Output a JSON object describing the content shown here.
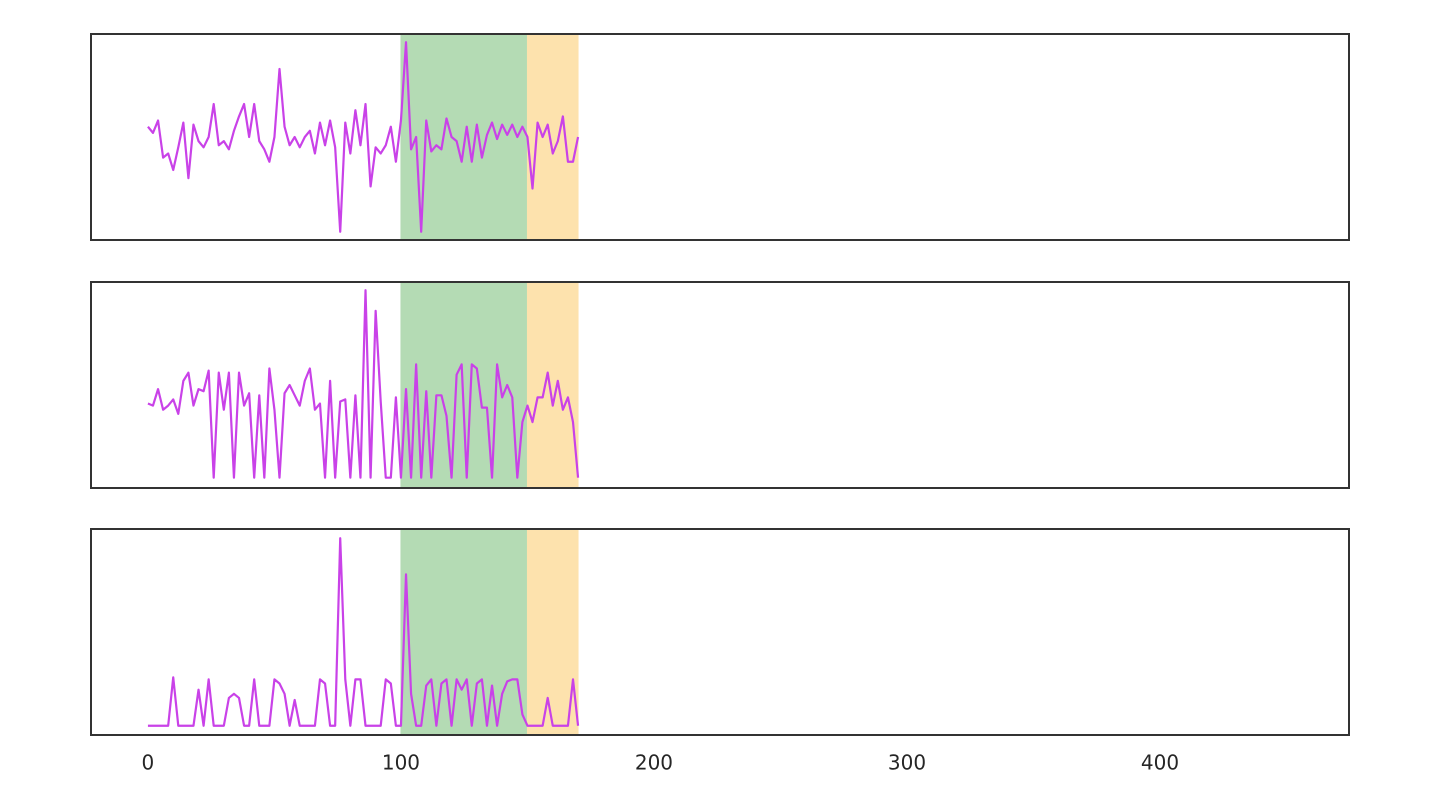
{
  "chart_data": {
    "type": "line",
    "x": [
      0,
      2,
      4,
      6,
      8,
      10,
      12,
      14,
      16,
      18,
      20,
      22,
      24,
      26,
      28,
      30,
      32,
      34,
      36,
      38,
      40,
      42,
      44,
      46,
      48,
      50,
      52,
      54,
      56,
      58,
      60,
      62,
      64,
      66,
      68,
      70,
      72,
      74,
      76,
      78,
      80,
      82,
      84,
      86,
      88,
      90,
      92,
      94,
      96,
      98,
      100,
      102,
      104,
      106,
      108,
      110,
      112,
      114,
      116,
      118,
      120,
      122,
      124,
      126,
      128,
      130,
      132,
      134,
      136,
      138,
      140,
      142,
      144,
      146,
      148,
      150,
      152,
      154,
      156,
      158,
      160,
      162,
      164,
      166,
      168,
      170
    ],
    "series": [
      {
        "color": "#c942e8",
        "values": [
          0.55,
          0.52,
          0.58,
          0.4,
          0.42,
          0.34,
          0.45,
          0.57,
          0.3,
          0.56,
          0.48,
          0.45,
          0.5,
          0.66,
          0.46,
          0.48,
          0.44,
          0.53,
          0.6,
          0.66,
          0.5,
          0.66,
          0.48,
          0.44,
          0.38,
          0.5,
          0.83,
          0.55,
          0.46,
          0.5,
          0.45,
          0.5,
          0.53,
          0.42,
          0.57,
          0.46,
          0.58,
          0.45,
          0.04,
          0.57,
          0.42,
          0.63,
          0.46,
          0.66,
          0.26,
          0.45,
          0.42,
          0.46,
          0.55,
          0.38,
          0.58,
          0.96,
          0.44,
          0.5,
          0.04,
          0.58,
          0.43,
          0.46,
          0.44,
          0.59,
          0.5,
          0.48,
          0.38,
          0.55,
          0.38,
          0.56,
          0.4,
          0.51,
          0.57,
          0.49,
          0.56,
          0.51,
          0.56,
          0.5,
          0.55,
          0.5,
          0.25,
          0.57,
          0.5,
          0.56,
          0.42,
          0.48,
          0.6,
          0.38,
          0.38,
          0.5
        ]
      },
      {
        "color": "#c942e8",
        "values": [
          0.41,
          0.4,
          0.48,
          0.38,
          0.4,
          0.43,
          0.36,
          0.52,
          0.56,
          0.4,
          0.48,
          0.47,
          0.57,
          0.05,
          0.56,
          0.38,
          0.56,
          0.05,
          0.56,
          0.4,
          0.46,
          0.05,
          0.45,
          0.05,
          0.58,
          0.38,
          0.05,
          0.46,
          0.5,
          0.45,
          0.4,
          0.52,
          0.58,
          0.38,
          0.41,
          0.05,
          0.52,
          0.05,
          0.42,
          0.43,
          0.05,
          0.45,
          0.05,
          0.96,
          0.05,
          0.86,
          0.42,
          0.05,
          0.05,
          0.44,
          0.05,
          0.48,
          0.05,
          0.6,
          0.05,
          0.47,
          0.05,
          0.45,
          0.45,
          0.35,
          0.05,
          0.55,
          0.6,
          0.05,
          0.6,
          0.58,
          0.39,
          0.39,
          0.05,
          0.6,
          0.44,
          0.5,
          0.44,
          0.05,
          0.32,
          0.4,
          0.32,
          0.44,
          0.44,
          0.56,
          0.4,
          0.52,
          0.38,
          0.44,
          0.32,
          0.05
        ]
      },
      {
        "color": "#c942e8",
        "values": [
          0.045,
          0.045,
          0.045,
          0.045,
          0.045,
          0.28,
          0.045,
          0.045,
          0.045,
          0.045,
          0.22,
          0.045,
          0.27,
          0.045,
          0.045,
          0.045,
          0.18,
          0.2,
          0.18,
          0.045,
          0.045,
          0.27,
          0.045,
          0.045,
          0.045,
          0.27,
          0.25,
          0.2,
          0.045,
          0.17,
          0.045,
          0.045,
          0.045,
          0.045,
          0.27,
          0.25,
          0.045,
          0.045,
          0.955,
          0.27,
          0.045,
          0.27,
          0.27,
          0.045,
          0.045,
          0.045,
          0.045,
          0.27,
          0.25,
          0.045,
          0.045,
          0.78,
          0.2,
          0.045,
          0.045,
          0.24,
          0.27,
          0.045,
          0.25,
          0.27,
          0.045,
          0.27,
          0.22,
          0.27,
          0.045,
          0.25,
          0.27,
          0.045,
          0.24,
          0.045,
          0.2,
          0.26,
          0.27,
          0.27,
          0.1,
          0.045,
          0.045,
          0.045,
          0.045,
          0.18,
          0.045,
          0.045,
          0.045,
          0.045,
          0.27,
          0.045
        ]
      }
    ],
    "spans": [
      {
        "start": 100,
        "end": 150,
        "color": "#b4dbb4"
      },
      {
        "start": 150,
        "end": 170,
        "color": "#fde2ad"
      }
    ],
    "xlim": [
      -22.5,
      474.7
    ],
    "xticks": [
      0,
      100,
      200,
      300,
      400
    ],
    "ylim": [
      0,
      1
    ],
    "grid": false
  }
}
